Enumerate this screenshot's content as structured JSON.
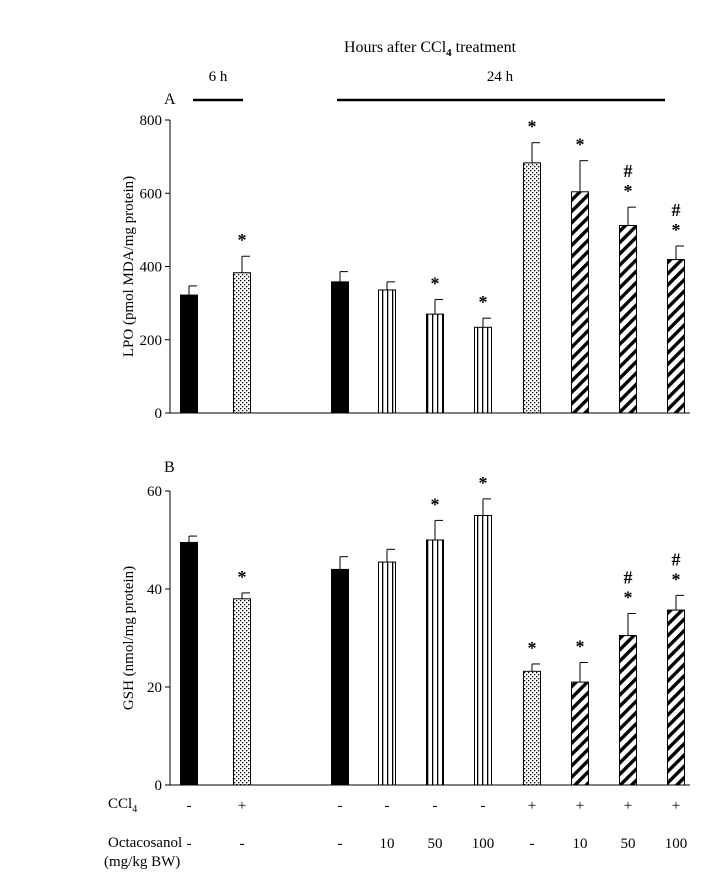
{
  "figure": {
    "header": "Hours after CCl",
    "header_sub": "4",
    "header_tail": " treatment",
    "period_6h": "6 h",
    "period_24h": "24 h",
    "ccl4_label": "CCl",
    "ccl4_sub": "4",
    "octa_label": "Octacosanol",
    "octa_unit": "(mg/kg BW)",
    "ccl4_values": [
      "-",
      "+",
      "-",
      "-",
      "-",
      "-",
      "+",
      "+",
      "+",
      "+"
    ],
    "octa_values": [
      "-",
      "-",
      "-",
      "10",
      "50",
      "100",
      "-",
      "10",
      "50",
      "100"
    ]
  },
  "chart_data": [
    {
      "type": "bar",
      "panel_label": "A",
      "ylabel": "LPO (pmol MDA/mg protein)",
      "ylim": [
        0,
        800
      ],
      "yticks": [
        "0",
        "200",
        "400",
        "600",
        "800"
      ],
      "groups": [
        "6 h",
        "24 h"
      ],
      "values": [
        322,
        383,
        358,
        336,
        270,
        234,
        683,
        604,
        512,
        419
      ],
      "errors": [
        25,
        45,
        28,
        22,
        40,
        25,
        55,
        85,
        50,
        37
      ],
      "fills": [
        "solid",
        "dots",
        "solid",
        "vstripes",
        "vstripes",
        "vstripes",
        "dots",
        "diag",
        "diag",
        "diag"
      ],
      "annotations": [
        "",
        "*",
        "",
        "",
        "*",
        "*",
        "*",
        "*",
        "#\n*",
        "#\n*"
      ]
    },
    {
      "type": "bar",
      "panel_label": "B",
      "ylabel": "GSH (nmol/mg protein)",
      "ylim": [
        0,
        60
      ],
      "yticks": [
        "0",
        "20",
        "40",
        "60"
      ],
      "groups": [
        "6 h",
        "24 h"
      ],
      "values": [
        49.5,
        38,
        44,
        45.5,
        50,
        55,
        23.2,
        21,
        30.5,
        35.7
      ],
      "errors": [
        1.3,
        1.2,
        2.6,
        2.6,
        4,
        3.4,
        1.5,
        4,
        4.5,
        3
      ],
      "fills": [
        "solid",
        "dots",
        "solid",
        "vstripes",
        "vstripes",
        "vstripes",
        "dots",
        "diag",
        "diag",
        "diag"
      ],
      "annotations": [
        "",
        "*",
        "",
        "",
        "*",
        "*",
        "*",
        "*",
        "#\n*",
        "#\n*"
      ]
    }
  ]
}
